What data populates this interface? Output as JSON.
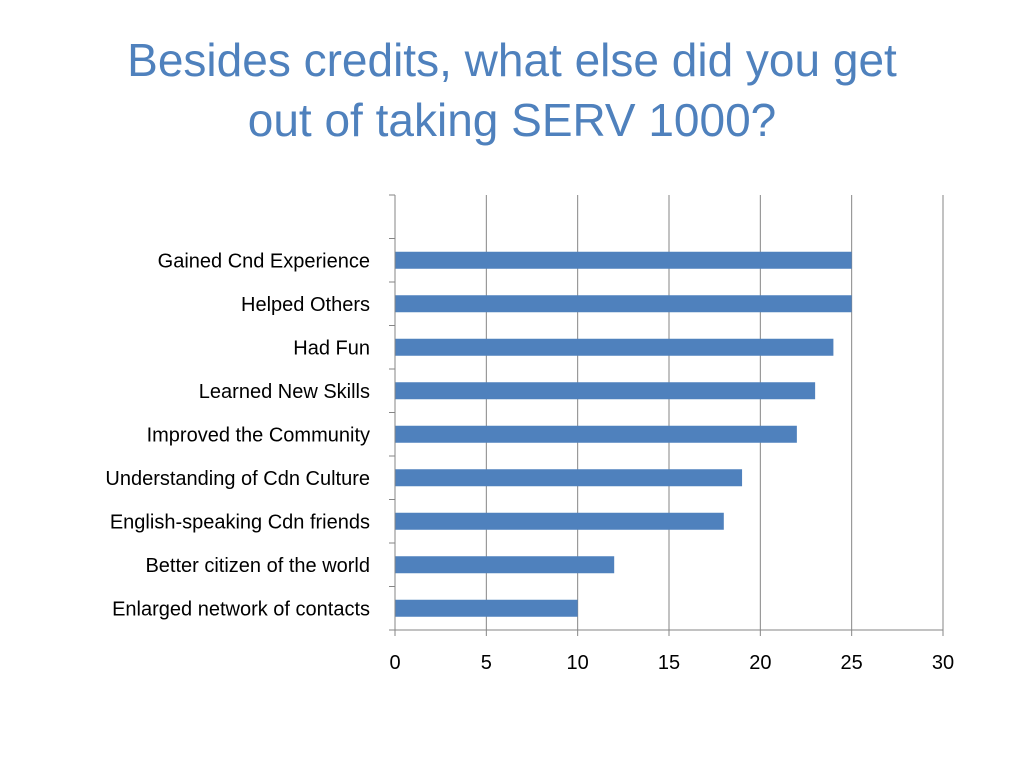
{
  "slide": {
    "title_line1": "Besides credits, what else did you get",
    "title_line2": "out of taking SERV 1000?"
  },
  "colors": {
    "title": "#4f81bd",
    "bar": "#4f81bd",
    "grid": "#868686"
  },
  "chart_data": {
    "type": "bar",
    "orientation": "horizontal",
    "categories": [
      "Gained Cnd Experience",
      "Helped Others",
      "Had Fun",
      "Learned New Skills",
      "Improved the Community",
      "Understanding of Cdn Culture",
      "English-speaking Cdn friends",
      "Better citizen of the world",
      "Enlarged network of contacts"
    ],
    "values": [
      25,
      25,
      24,
      23,
      22,
      19,
      18,
      12,
      10
    ],
    "xlim": [
      0,
      30
    ],
    "xticks": [
      0,
      5,
      10,
      15,
      20,
      25,
      30
    ],
    "grid": "vertical",
    "legend": "none"
  }
}
